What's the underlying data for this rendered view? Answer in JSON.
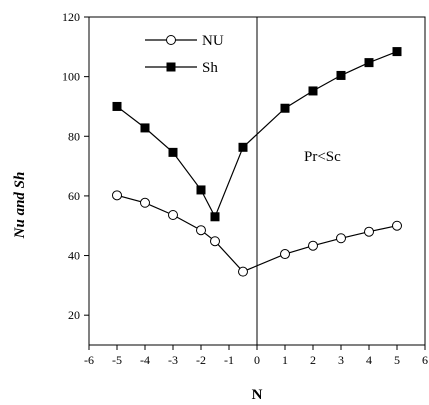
{
  "chart_data": {
    "type": "line",
    "xlabel": "N",
    "ylabel": "Nu  and Sh",
    "xlim": [
      -6,
      6
    ],
    "ylim": [
      10,
      120
    ],
    "xticks": [
      "-6",
      "-5",
      "-4",
      "-3",
      "-2",
      "-1",
      "0",
      "1",
      "2",
      "3",
      "4",
      "5",
      "6"
    ],
    "yticks": [
      "20",
      "40",
      "60",
      "80",
      "100",
      "120"
    ],
    "annotation": "Pr<Sc",
    "legend_position": "top-left",
    "grid": false,
    "series": [
      {
        "name": "NU",
        "marker": "open-circle",
        "color": "#000000",
        "x": [
          -5,
          -4,
          -3,
          -2,
          -1.5,
          -0.5,
          1,
          2,
          3,
          4,
          5
        ],
        "y": [
          60.2,
          57.7,
          53.6,
          48.5,
          44.8,
          34.6,
          40.5,
          43.3,
          45.8,
          48.0,
          50.0
        ]
      },
      {
        "name": "Sh",
        "marker": "filled-square",
        "color": "#000000",
        "x": [
          -5,
          -4,
          -3,
          -2,
          -1.5,
          -0.5,
          1,
          2,
          3,
          4,
          5
        ],
        "y": [
          90.0,
          82.8,
          74.6,
          62.0,
          53.0,
          76.3,
          89.4,
          95.2,
          100.4,
          104.7,
          108.4
        ]
      }
    ]
  }
}
